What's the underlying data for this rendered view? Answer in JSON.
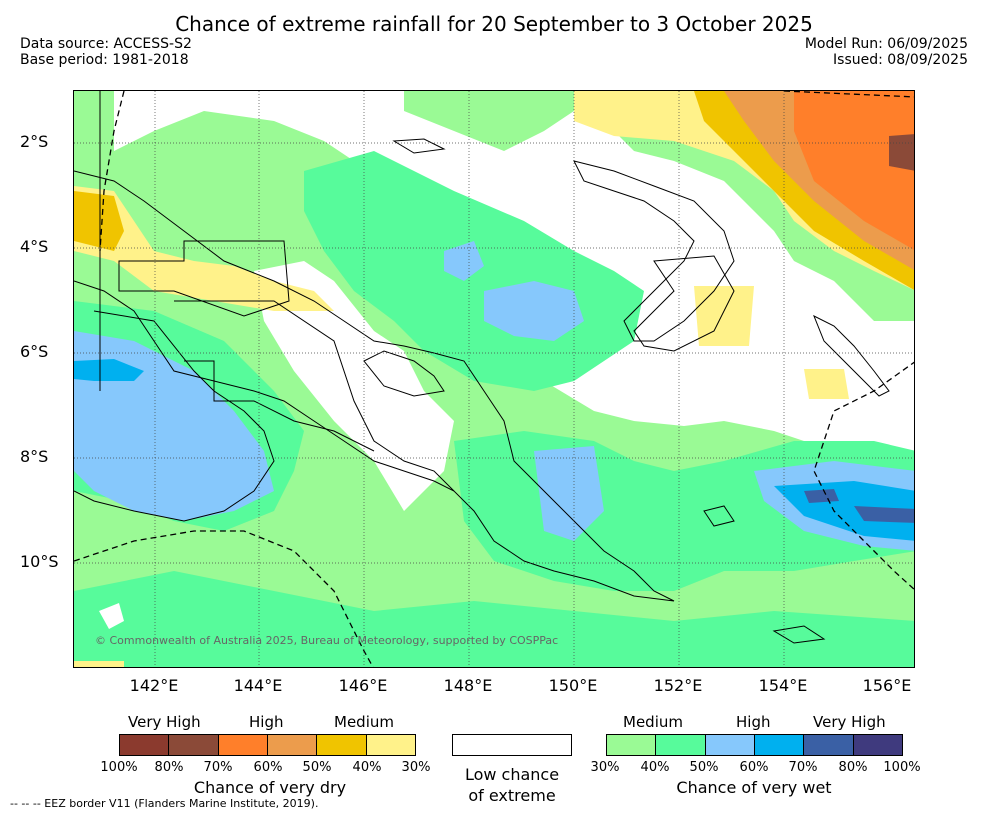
{
  "title": "Chance of extreme rainfall for 20 September to 3 October 2025",
  "data_source": "Data source: ACCESS-S2",
  "base_period": "Base period: 1981-2018",
  "model_run": "Model Run: 06/09/2025",
  "issued": "Issued: 08/09/2025",
  "lat_labels": [
    "2°S",
    "4°S",
    "6°S",
    "8°S",
    "10°S"
  ],
  "lon_labels": [
    "142°E",
    "144°E",
    "146°E",
    "148°E",
    "150°E",
    "152°E",
    "154°E",
    "156°E"
  ],
  "copyright": "© Commonwealth of Australia 2025, Bureau of Meteorology, supported by COSPPac",
  "legend": {
    "dry": {
      "categories": [
        "Very High",
        "High",
        "Medium"
      ],
      "colors": [
        "#8b3a2e",
        "#8b4a38",
        "#ff7f2a",
        "#ec9c4c",
        "#f0c400",
        "#fff28a"
      ],
      "ticks": [
        "100%",
        "80%",
        "70%",
        "60%",
        "50%",
        "40%",
        "30%"
      ],
      "caption": "Chance of very dry"
    },
    "low": {
      "line1": "Low chance",
      "line2": "of extreme"
    },
    "wet": {
      "categories": [
        "Medium",
        "High",
        "Very High"
      ],
      "colors": [
        "#9afa95",
        "#57fb9b",
        "#86c8fc",
        "#00b0ef",
        "#3a60a5",
        "#3f3a7e"
      ],
      "ticks": [
        "30%",
        "40%",
        "50%",
        "60%",
        "70%",
        "80%",
        "100%"
      ],
      "caption": "Chance of very wet"
    }
  },
  "eez_note": "--  --  -- EEZ border V11 (Flanders Marine Institute, 2019)."
}
